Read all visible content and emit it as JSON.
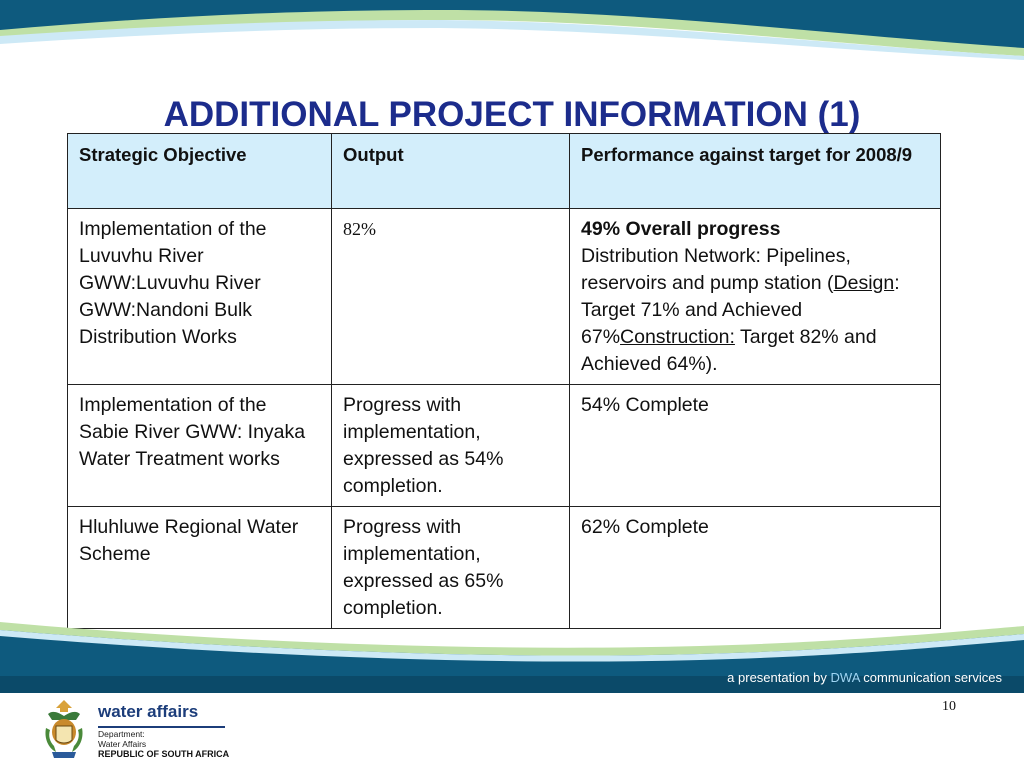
{
  "slide": {
    "title": "ADDITIONAL PROJECT INFORMATION (1)",
    "page_number": "10"
  },
  "table": {
    "headers": [
      "Strategic Objective",
      "Output",
      "Performance against target for 2008/9"
    ],
    "rows": [
      {
        "objective": "Implementation of the Luvuvhu River GWW:Luvuvhu River GWW:Nandoni Bulk Distribution Works",
        "output": "82%",
        "performance": {
          "headline": "49% Overall progress",
          "text1": "Distribution Network: Pipelines, reservoirs and pump station (",
          "design_label": "Design",
          "text2": ": Target 71% and Achieved 67%",
          "construction_label": "Construction:",
          "text3": " Target 82% and Achieved 64%)."
        }
      },
      {
        "objective": "Implementation of the Sabie River GWW: Inyaka Water Treatment works",
        "output": "Progress with implementation, expressed as 54% completion.",
        "performance": "54% Complete"
      },
      {
        "objective": "Hluhluwe Regional Water Scheme",
        "output": "Progress with implementation, expressed as 65% completion.",
        "performance": "62% Complete"
      }
    ]
  },
  "footer": {
    "credit_prefix": "a presentation by ",
    "credit_dwa": "DWA",
    "credit_suffix": " communication services",
    "logo": {
      "name": "water affairs",
      "dept_line1": "Department:",
      "dept_line2": "Water Affairs",
      "country": "REPUBLIC OF SOUTH AFRICA"
    }
  },
  "colors": {
    "title": "#1c2c8c",
    "header_fill": "#d3eefb",
    "band_dark": "#0e5a7e",
    "band_green": "#bfe0a6",
    "band_light": "#cde9f6"
  },
  "icons": [
    "coat-of-arms-icon"
  ]
}
